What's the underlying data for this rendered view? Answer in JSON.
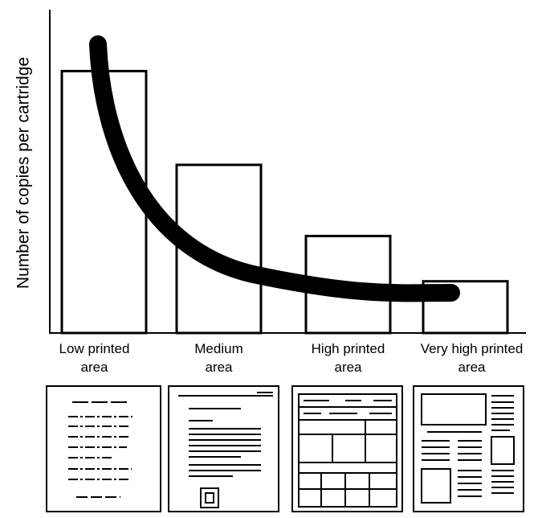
{
  "chart_data": {
    "type": "bar",
    "y_label": "Number of copies per cartridge",
    "categories": [
      "Low printed area",
      "Medium area",
      "High printed area",
      "Very high printed area"
    ],
    "values": [
      81,
      52,
      30,
      16
    ],
    "color": "#ffffff",
    "ylim": [
      0,
      100
    ]
  }
}
